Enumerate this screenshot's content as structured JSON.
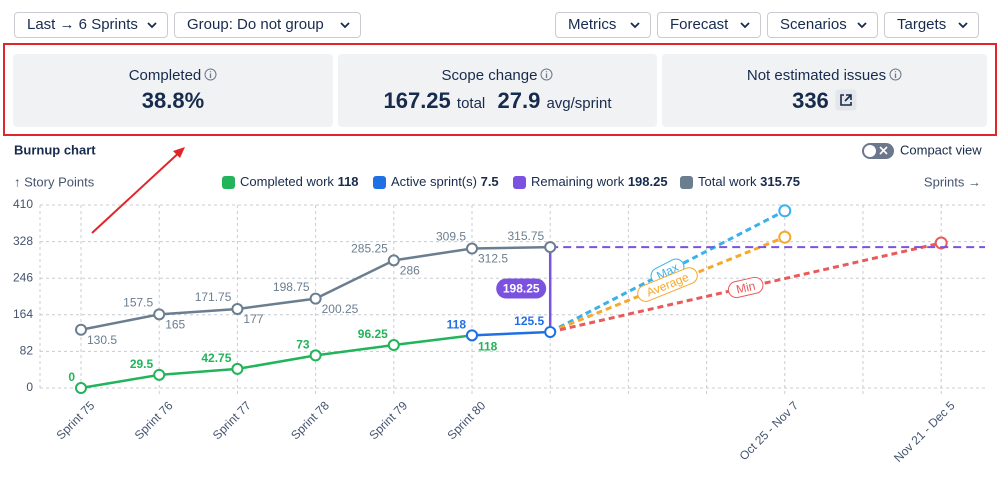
{
  "toolbar": {
    "left": [
      "Last → 6 Sprints",
      "Group: Do not group"
    ],
    "right": [
      "Metrics",
      "Forecast",
      "Scenarios",
      "Targets"
    ]
  },
  "summary": {
    "completed": {
      "label": "Completed",
      "value": "38.8%"
    },
    "scope_change": {
      "label": "Scope change",
      "total": 167.25,
      "total_unit": "total",
      "avg": 27.9,
      "avg_unit": "avg/sprint"
    },
    "not_estimated": {
      "label": "Not estimated issues",
      "value": 336
    }
  },
  "chart_data": {
    "type": "line",
    "title": "Burnup chart",
    "toggle": "Compact view",
    "y_label": "↑ Story Points",
    "x_label": "Sprints →",
    "categories": [
      "Sprint 75",
      "Sprint 76",
      "Sprint 77",
      "Sprint 78",
      "Sprint 79",
      "Sprint 80",
      null,
      null,
      null,
      "Oct 25 - Nov 7",
      null,
      "Nov 21 - Dec 5"
    ],
    "ylim": [
      0,
      410
    ],
    "yticks": [
      0,
      82,
      164,
      246,
      328,
      410
    ],
    "grid": true,
    "series": [
      {
        "name": "Completed work",
        "color": "#22b45a",
        "legend_value": 118,
        "values": [
          0,
          29.5,
          42.75,
          73,
          96.25,
          118,
          null,
          null,
          null,
          null,
          null,
          null
        ]
      },
      {
        "name": "Active sprint(s)",
        "color": "#1f6fe5",
        "legend_value": 7.5,
        "values": [
          null,
          null,
          null,
          null,
          null,
          118,
          125.5,
          null,
          null,
          null,
          null,
          null
        ]
      },
      {
        "name": "Remaining work",
        "color": "#7b52e0",
        "legend_value": 198.25
      },
      {
        "name": "Total work",
        "color": "#6b7e8f",
        "legend_value": 315.75,
        "values": [
          130.5,
          165,
          177,
          200.25,
          286,
          312.5,
          315.75,
          null,
          null,
          null,
          null,
          null
        ],
        "scope_start": [
          null,
          157.5,
          171.75,
          198.75,
          285.25,
          309.5,
          null,
          null,
          null,
          null,
          null,
          null
        ]
      }
    ],
    "forecasts": [
      {
        "name": "Max",
        "color": "#3bb0ea",
        "end": 397,
        "end_category": "Oct 25 - Nov 7"
      },
      {
        "name": "Average",
        "color": "#f6a82b",
        "end": 338,
        "end_category": "Oct 25 - Nov 7"
      },
      {
        "name": "Min",
        "color": "#ea5a5a",
        "end": 325,
        "end_category": "Nov 21 - Dec 5"
      }
    ]
  }
}
